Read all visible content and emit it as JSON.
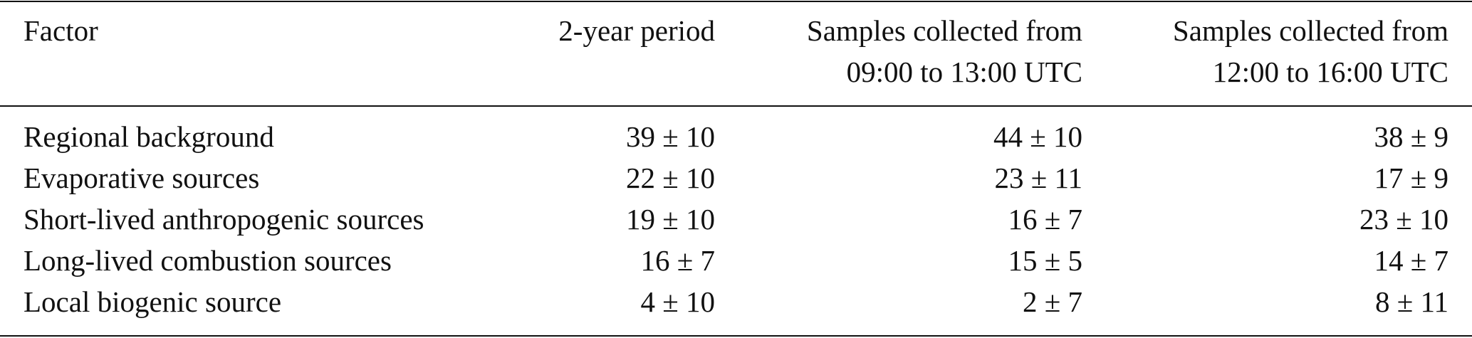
{
  "table": {
    "header": [
      [
        "Factor"
      ],
      [
        "2-year period"
      ],
      [
        "Samples collected from",
        "09:00 to 13:00 UTC"
      ],
      [
        "Samples collected from",
        "12:00 to 16:00 UTC"
      ]
    ],
    "rows": [
      [
        "Regional background",
        "39 ± 10",
        "44 ± 10",
        "38 ± 9"
      ],
      [
        "Evaporative sources",
        "22 ± 10",
        "23 ± 11",
        "17 ± 9"
      ],
      [
        "Short-lived anthropogenic sources",
        "19 ± 10",
        "16 ± 7",
        "23 ± 10"
      ],
      [
        "Long-lived combustion sources",
        "16 ± 7",
        "15 ± 5",
        "14 ± 7"
      ],
      [
        "Local biogenic source",
        "4 ± 10",
        "2 ± 7",
        "8 ± 11"
      ]
    ]
  }
}
